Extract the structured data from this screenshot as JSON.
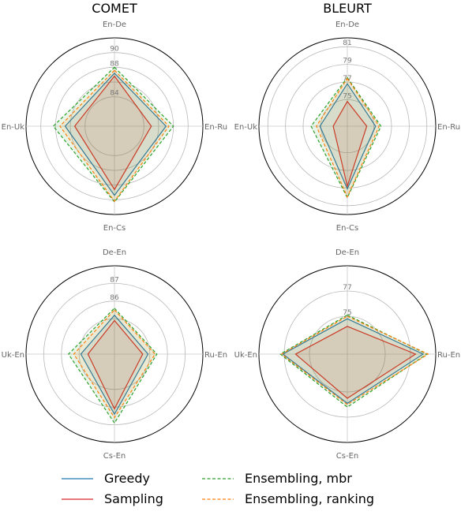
{
  "chart_data": [
    {
      "type": "radar",
      "title": "COMET",
      "axes": [
        "En-De",
        "En-Ru",
        "En-Cs",
        "En-Uk"
      ],
      "rmin": 80,
      "rmax": 92,
      "rings": [
        84,
        86,
        88,
        90
      ],
      "tick_labels": [
        "84",
        "",
        "88",
        "90"
      ],
      "series": [
        {
          "values": [
            87.2,
            87.0,
            89.4,
            86.7
          ]
        },
        {
          "values": [
            86.8,
            85.0,
            88.6,
            85.4
          ]
        },
        {
          "values": [
            88.0,
            88.0,
            90.3,
            88.3
          ]
        },
        {
          "values": [
            87.6,
            87.4,
            90.2,
            87.4
          ]
        }
      ]
    },
    {
      "type": "radar",
      "title": "BLEURT",
      "axes": [
        "En-De",
        "En-Ru",
        "En-Cs",
        "En-Uk"
      ],
      "rmin": 72,
      "rmax": 82,
      "rings": [
        75,
        77,
        79,
        81
      ],
      "tick_labels": [
        "75",
        "77",
        "79",
        "81"
      ],
      "series": [
        {
          "values": [
            76.8,
            75.2,
            79.1,
            75.1
          ]
        },
        {
          "values": [
            74.8,
            74.2,
            78.8,
            73.6
          ]
        },
        {
          "values": [
            77.5,
            75.8,
            80.1,
            76.1
          ]
        },
        {
          "values": [
            77.4,
            75.6,
            80.0,
            75.5
          ]
        }
      ]
    },
    {
      "type": "radar",
      "title": "",
      "axes": [
        "De-En",
        "Ru-En",
        "Cs-En",
        "Uk-En"
      ],
      "rmin": 83,
      "rmax": 88,
      "rings": [
        85,
        86,
        87
      ],
      "tick_labels": [
        "",
        "86",
        "87"
      ],
      "series": [
        {
          "values": [
            85.2,
            84.9,
            86.4,
            84.9
          ]
        },
        {
          "values": [
            84.9,
            84.6,
            86.1,
            84.5
          ]
        },
        {
          "values": [
            85.6,
            85.4,
            86.9,
            85.6
          ]
        },
        {
          "values": [
            85.5,
            85.3,
            86.6,
            85.3
          ]
        }
      ]
    },
    {
      "type": "radar",
      "title": "",
      "axes": [
        "De-En",
        "Ru-En",
        "Cs-En",
        "Uk-En"
      ],
      "rmin": 72,
      "rmax": 79,
      "rings": [
        75,
        77
      ],
      "tick_labels": [
        "75",
        "77"
      ],
      "series": [
        {
          "values": [
            74.8,
            78.0,
            75.9,
            77.1
          ]
        },
        {
          "values": [
            74.2,
            77.4,
            75.5,
            76.1
          ]
        },
        {
          "values": [
            75.1,
            78.3,
            76.2,
            77.3
          ]
        },
        {
          "values": [
            75.0,
            78.4,
            76.0,
            77.2
          ]
        }
      ]
    }
  ],
  "legend": [
    {
      "label": "Greedy",
      "color": "#1f77b4",
      "dash": false
    },
    {
      "label": "Sampling",
      "color": "#d62728",
      "dash": false
    },
    {
      "label": "Ensembling, mbr",
      "color": "#2ca02c",
      "dash": true
    },
    {
      "label": "Ensembling, ranking",
      "color": "#ff7f0e",
      "dash": true
    }
  ]
}
